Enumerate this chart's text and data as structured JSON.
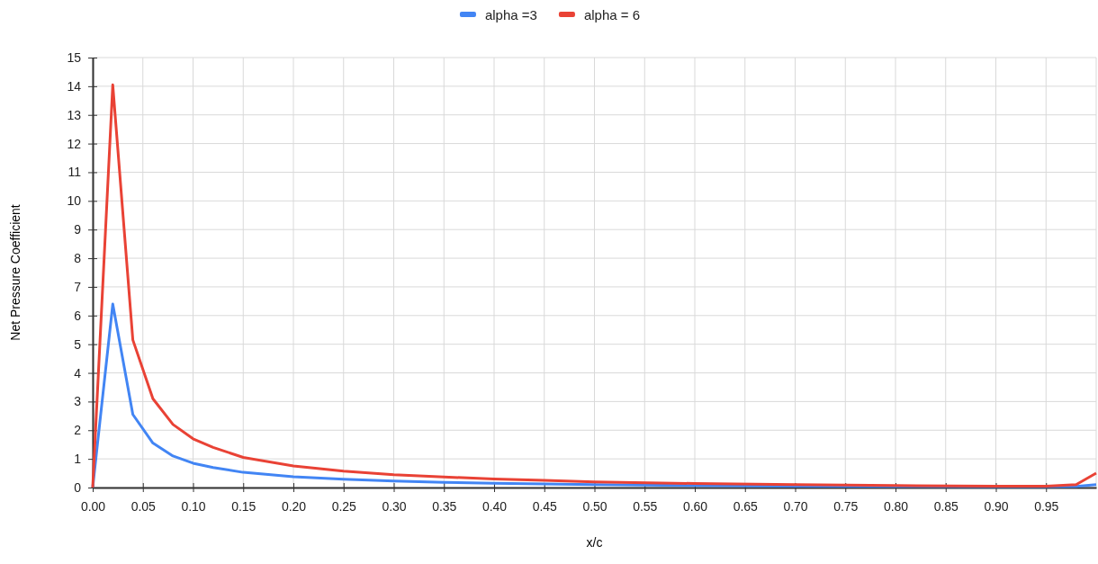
{
  "chart_data": {
    "type": "line",
    "xlabel": "x/c",
    "ylabel": "Net Pressure Coefficient",
    "xlim": [
      0,
      1
    ],
    "ylim": [
      0,
      15
    ],
    "xticks": [
      {
        "value": 0,
        "label": "0.00"
      },
      {
        "value": 0.05,
        "label": "0.05"
      },
      {
        "value": 0.1,
        "label": "0.10"
      },
      {
        "value": 0.15,
        "label": "0.15"
      },
      {
        "value": 0.2,
        "label": "0.20"
      },
      {
        "value": 0.25,
        "label": "0.25"
      },
      {
        "value": 0.3,
        "label": "0.30"
      },
      {
        "value": 0.35,
        "label": "0.35"
      },
      {
        "value": 0.4,
        "label": "0.40"
      },
      {
        "value": 0.45,
        "label": "0.45"
      },
      {
        "value": 0.5,
        "label": "0.50"
      },
      {
        "value": 0.55,
        "label": "0.55"
      },
      {
        "value": 0.6,
        "label": "0.60"
      },
      {
        "value": 0.65,
        "label": "0.65"
      },
      {
        "value": 0.7,
        "label": "0.70"
      },
      {
        "value": 0.75,
        "label": "0.75"
      },
      {
        "value": 0.8,
        "label": "0.80"
      },
      {
        "value": 0.85,
        "label": "0.85"
      },
      {
        "value": 0.9,
        "label": "0.90"
      },
      {
        "value": 0.95,
        "label": "0.95"
      }
    ],
    "yticks": [
      0,
      1,
      2,
      3,
      4,
      5,
      6,
      7,
      8,
      9,
      10,
      11,
      12,
      13,
      14,
      15
    ],
    "grid": true,
    "legend": "top",
    "marker": "none",
    "line_style": "solid",
    "series": [
      {
        "name": "alpha =3",
        "color": "#4285f4",
        "x": [
          0,
          0.02,
          0.04,
          0.06,
          0.08,
          0.1,
          0.12,
          0.15,
          0.2,
          0.25,
          0.3,
          0.35,
          0.4,
          0.5,
          0.6,
          0.7,
          0.8,
          0.9,
          0.95,
          0.98,
          1
        ],
        "values": [
          0,
          6.4,
          2.55,
          1.55,
          1.1,
          0.85,
          0.7,
          0.53,
          0.38,
          0.29,
          0.23,
          0.18,
          0.15,
          0.1,
          0.07,
          0.05,
          0.04,
          0.03,
          0.03,
          0.04,
          0.1
        ]
      },
      {
        "name": "alpha = 6",
        "color": "#e94235",
        "x": [
          0,
          0.02,
          0.04,
          0.06,
          0.08,
          0.1,
          0.12,
          0.15,
          0.2,
          0.25,
          0.3,
          0.35,
          0.4,
          0.45,
          0.5,
          0.6,
          0.7,
          0.8,
          0.9,
          0.95,
          0.98,
          1
        ],
        "values": [
          0,
          14.05,
          5.15,
          3.1,
          2.2,
          1.7,
          1.4,
          1.05,
          0.75,
          0.57,
          0.45,
          0.37,
          0.3,
          0.25,
          0.2,
          0.14,
          0.1,
          0.07,
          0.05,
          0.05,
          0.1,
          0.5
        ]
      }
    ]
  }
}
